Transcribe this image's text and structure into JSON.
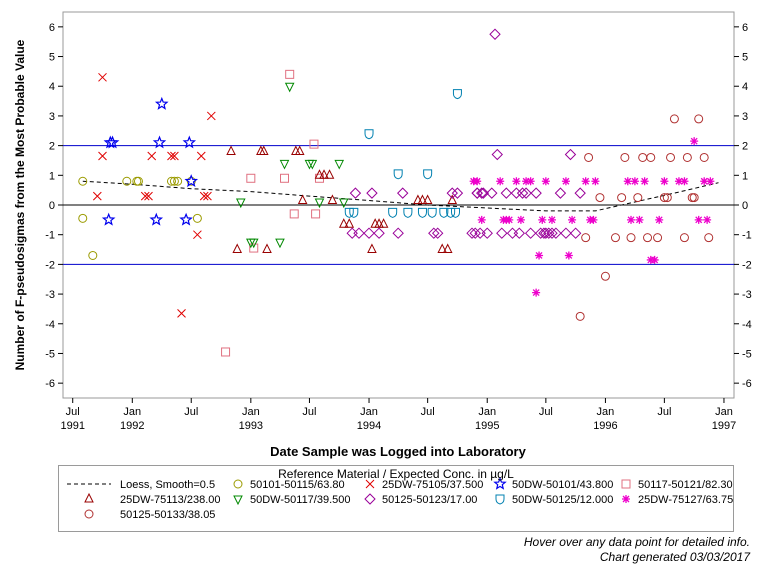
{
  "chart_data": {
    "type": "scatter",
    "xlabel": "Date Sample was Logged into Laboratory",
    "ylabel": "Number of F-pseudosigmas from the Most Probable Value",
    "ylim": [
      -6.5,
      6.5
    ],
    "xlim": [
      "1991-06-01",
      "1997-02-01"
    ],
    "y_ticks": [
      -6,
      -5,
      -4,
      -3,
      -2,
      -1,
      0,
      1,
      2,
      3,
      4,
      5,
      6
    ],
    "x_ticks": [
      {
        "date": "1991-07-01",
        "line1": "Jul",
        "line2": "1991"
      },
      {
        "date": "1992-01-01",
        "line1": "Jan",
        "line2": "1992"
      },
      {
        "date": "1992-07-01",
        "line1": "Jul",
        "line2": ""
      },
      {
        "date": "1993-01-01",
        "line1": "Jan",
        "line2": "1993"
      },
      {
        "date": "1993-07-01",
        "line1": "Jul",
        "line2": ""
      },
      {
        "date": "1994-01-01",
        "line1": "Jan",
        "line2": "1994"
      },
      {
        "date": "1994-07-01",
        "line1": "Jul",
        "line2": ""
      },
      {
        "date": "1995-01-01",
        "line1": "Jan",
        "line2": "1995"
      },
      {
        "date": "1995-07-01",
        "line1": "Jul",
        "line2": ""
      },
      {
        "date": "1996-01-01",
        "line1": "Jan",
        "line2": "1996"
      },
      {
        "date": "1996-07-01",
        "line1": "Jul",
        "line2": ""
      },
      {
        "date": "1997-01-01",
        "line1": "Jan",
        "line2": "1997"
      }
    ],
    "reference_lines": [
      {
        "y": 2,
        "color": "#0000cc"
      },
      {
        "y": -2,
        "color": "#0000cc"
      },
      {
        "y": 0,
        "color": "#000000"
      }
    ],
    "right_axis": "mirror",
    "legend_placement": "bottom",
    "legend_title": "Reference Material / Expected Conc. in µg/L",
    "loess": {
      "name": "Loess, Smooth=0.5",
      "x": [
        "1991-08-01",
        "1992-01-01",
        "1992-07-01",
        "1993-01-01",
        "1993-07-01",
        "1994-01-01",
        "1994-07-01",
        "1995-01-01",
        "1995-07-01",
        "1995-12-01",
        "1996-04-01",
        "1996-08-01",
        "1996-12-15"
      ],
      "y": [
        0.8,
        0.7,
        0.55,
        0.45,
        0.3,
        0.15,
        0.0,
        -0.1,
        -0.2,
        -0.2,
        0.1,
        0.4,
        0.75
      ]
    },
    "series": [
      {
        "name": "50101-50115/63.80",
        "marker": "circle",
        "color": "#9b9b00",
        "x": [
          "1991-08-01",
          "1991-08-01",
          "1991-09-01",
          "1991-12-15",
          "1992-01-15",
          "1992-01-20",
          "1992-05-01",
          "1992-05-10",
          "1992-05-20",
          "1992-07-01",
          "1992-07-20"
        ],
        "y": [
          -0.45,
          0.8,
          -1.7,
          0.8,
          0.8,
          0.8,
          0.8,
          0.8,
          0.8,
          0.8,
          -0.45
        ]
      },
      {
        "name": "25DW-75105/37.500",
        "marker": "x",
        "color": "#e00000",
        "x": [
          "1991-09-15",
          "1991-10-01",
          "1991-10-01",
          "1992-02-10",
          "1992-02-20",
          "1992-03-01",
          "1992-05-01",
          "1992-05-10",
          "1992-06-01",
          "1992-07-20",
          "1992-08-01",
          "1992-08-10",
          "1992-08-20",
          "1992-09-01"
        ],
        "y": [
          0.3,
          1.65,
          4.3,
          0.3,
          0.3,
          1.65,
          1.65,
          1.65,
          -3.65,
          -1.0,
          1.65,
          0.3,
          0.3,
          3.0
        ]
      },
      {
        "name": "50DW-50101/43.800",
        "marker": "star",
        "color": "#0000ee",
        "x": [
          "1991-10-20",
          "1991-10-25",
          "1991-11-01",
          "1992-03-15",
          "1992-03-25",
          "1992-04-01",
          "1992-06-15",
          "1992-06-25",
          "1992-07-01"
        ],
        "y": [
          -0.5,
          2.1,
          2.1,
          -0.5,
          2.1,
          3.4,
          -0.5,
          2.1,
          0.8
        ]
      },
      {
        "name": "50117-50121/82.30",
        "marker": "square",
        "color": "#e07080",
        "x": [
          "1992-10-15",
          "1993-01-01",
          "1993-01-10",
          "1993-04-15",
          "1993-05-01",
          "1993-05-15",
          "1993-07-15",
          "1993-07-20",
          "1993-08-01"
        ],
        "y": [
          -4.95,
          0.9,
          -1.45,
          0.9,
          4.4,
          -0.3,
          2.05,
          -0.3,
          0.9
        ]
      },
      {
        "name": "25DW-75113/238.00",
        "marker": "triangle",
        "color": "#990000",
        "x": [
          "1992-11-01",
          "1992-11-20",
          "1993-02-01",
          "1993-02-10",
          "1993-02-20",
          "1993-05-20",
          "1993-06-01",
          "1993-06-10",
          "1993-08-01",
          "1993-08-15",
          "1993-09-01",
          "1993-09-10",
          "1993-10-15",
          "1993-11-01",
          "1994-01-10",
          "1994-01-20",
          "1994-02-01",
          "1994-02-15",
          "1994-06-01",
          "1994-06-15",
          "1994-07-01",
          "1994-08-15",
          "1994-09-01",
          "1994-09-15"
        ],
        "y": [
          1.8,
          -1.5,
          1.8,
          1.8,
          -1.5,
          1.8,
          1.8,
          0.15,
          1.0,
          1.0,
          1.0,
          0.15,
          -0.65,
          -0.65,
          -1.5,
          -0.65,
          -0.65,
          -0.65,
          0.15,
          0.15,
          0.15,
          -1.5,
          -1.5,
          0.15
        ]
      },
      {
        "name": "50DW-50117/39.500",
        "marker": "triangle-down",
        "color": "#008800",
        "x": [
          "1992-12-01",
          "1993-01-01",
          "1993-01-10",
          "1993-04-01",
          "1993-04-15",
          "1993-05-01",
          "1993-07-01",
          "1993-07-10",
          "1993-08-01",
          "1993-10-01",
          "1993-10-15"
        ],
        "y": [
          0.1,
          -1.25,
          -1.25,
          -1.25,
          1.4,
          4.0,
          1.4,
          1.4,
          0.1,
          1.4,
          0.1
        ]
      },
      {
        "name": "50125-50123/17.00",
        "marker": "diamond",
        "color": "#990099",
        "x": [
          "1993-11-10",
          "1993-11-20",
          "1993-12-01",
          "1994-01-01",
          "1994-01-10",
          "1994-02-01",
          "1994-04-01",
          "1994-04-15",
          "1994-07-20",
          "1994-08-01",
          "1994-09-15",
          "1994-10-01",
          "1994-11-15",
          "1994-11-25",
          "1994-12-01",
          "1994-12-10",
          "1994-12-20",
          "1995-01-01",
          "1995-01-15",
          "1995-01-25",
          "1995-02-01",
          "1995-02-15",
          "1995-03-01",
          "1995-03-20",
          "1995-04-01",
          "1995-04-10",
          "1995-04-20",
          "1995-05-01",
          "1995-05-15",
          "1995-06-01",
          "1995-06-15",
          "1995-06-25",
          "1995-07-01",
          "1995-07-10",
          "1995-07-20",
          "1995-08-01",
          "1995-08-15",
          "1995-09-01",
          "1995-09-15",
          "1995-10-01",
          "1995-10-15",
          "1994-12-01",
          "1994-12-15"
        ],
        "y": [
          -0.95,
          0.4,
          -0.95,
          -0.95,
          0.4,
          -0.95,
          -0.95,
          0.4,
          -0.95,
          -0.95,
          0.4,
          0.4,
          -0.95,
          -0.95,
          0.4,
          -0.95,
          0.4,
          -0.95,
          0.4,
          5.75,
          1.7,
          -0.95,
          0.4,
          -0.95,
          0.4,
          -0.95,
          0.4,
          0.4,
          -0.95,
          0.4,
          -0.95,
          -0.95,
          -0.95,
          -0.95,
          -0.95,
          -0.95,
          0.4,
          -0.95,
          1.7,
          -0.95,
          0.4,
          0.4,
          0.4
        ]
      },
      {
        "name": "50DW-50125/12.000",
        "marker": "shield",
        "color": "#0080b0",
        "x": [
          "1993-11-01",
          "1993-11-15",
          "1994-01-01",
          "1994-03-15",
          "1994-04-01",
          "1994-05-01",
          "1994-06-15",
          "1994-07-01",
          "1994-07-15",
          "1994-08-20",
          "1994-09-10",
          "1994-09-25",
          "1994-10-01"
        ],
        "y": [
          -0.25,
          -0.25,
          2.4,
          -0.25,
          1.05,
          -0.25,
          -0.25,
          1.05,
          -0.25,
          -0.25,
          -0.25,
          -0.25,
          3.75
        ]
      },
      {
        "name": "25DW-75127/63.75",
        "marker": "asterisk",
        "color": "#ee00cc",
        "x": [
          "1994-11-20",
          "1994-12-01",
          "1994-12-15",
          "1995-02-10",
          "1995-02-20",
          "1995-03-01",
          "1995-03-10",
          "1995-04-01",
          "1995-04-15",
          "1995-05-01",
          "1995-05-15",
          "1995-06-01",
          "1995-06-10",
          "1995-06-20",
          "1995-07-01",
          "1995-07-20",
          "1995-09-01",
          "1995-09-10",
          "1995-09-20",
          "1995-11-01",
          "1995-11-15",
          "1995-11-25",
          "1995-12-01",
          "1996-03-10",
          "1996-03-20",
          "1996-04-01",
          "1996-04-15",
          "1996-05-01",
          "1996-05-20",
          "1996-06-01",
          "1996-06-15",
          "1996-07-01",
          "1996-08-15",
          "1996-09-01",
          "1996-10-01",
          "1996-10-15",
          "1996-11-01",
          "1996-11-10",
          "1996-11-20"
        ],
        "y": [
          0.8,
          0.8,
          -0.5,
          0.8,
          -0.5,
          -0.5,
          -0.5,
          0.8,
          -0.5,
          0.8,
          0.8,
          -2.95,
          -1.7,
          -0.5,
          0.8,
          -0.5,
          0.8,
          -1.7,
          -0.5,
          0.8,
          -0.5,
          -0.5,
          0.8,
          0.8,
          -0.5,
          0.8,
          -0.5,
          0.8,
          -1.85,
          -1.85,
          -0.5,
          0.8,
          0.8,
          0.8,
          2.15,
          -0.5,
          0.8,
          -0.5,
          0.8
        ]
      },
      {
        "name": "50125-50133/38.05",
        "marker": "circle",
        "color": "#b03030",
        "x": [
          "1995-10-15",
          "1995-11-01",
          "1995-11-10",
          "1995-12-15",
          "1996-01-01",
          "1996-02-01",
          "1996-02-20",
          "1996-03-01",
          "1996-03-20",
          "1996-04-10",
          "1996-04-25",
          "1996-05-10",
          "1996-05-20",
          "1996-06-10",
          "1996-07-01",
          "1996-07-10",
          "1996-07-20",
          "1996-08-01",
          "1996-09-01",
          "1996-09-10",
          "1996-09-25",
          "1996-10-01",
          "1996-10-15",
          "1996-11-01",
          "1996-11-15"
        ],
        "y": [
          -3.75,
          -1.1,
          1.6,
          0.25,
          -2.4,
          -1.1,
          0.25,
          1.6,
          -1.1,
          0.25,
          1.6,
          -1.1,
          1.6,
          -1.1,
          0.25,
          0.25,
          1.6,
          2.9,
          -1.1,
          1.6,
          0.25,
          0.25,
          2.9,
          1.6,
          -1.1
        ]
      }
    ]
  },
  "footnotes": {
    "line1": "Hover over any data point for detailed info.",
    "line2": "Chart generated 03/03/2017"
  }
}
